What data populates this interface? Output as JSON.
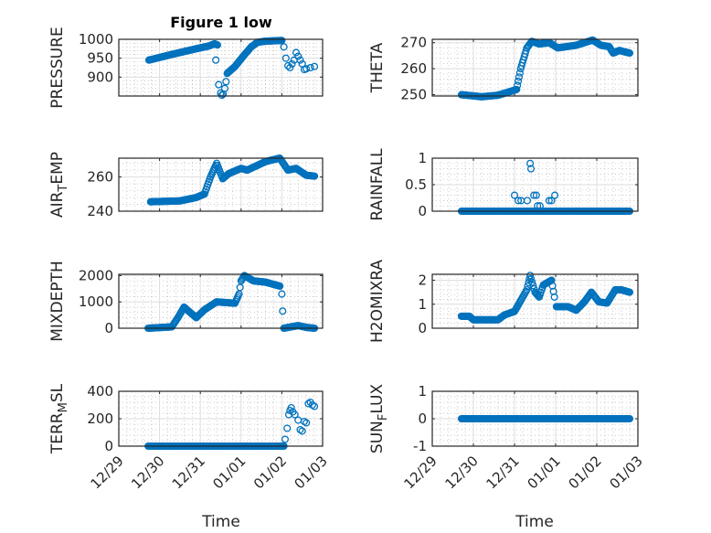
{
  "title": "Figure 1 low",
  "xlabel": "Time",
  "colors": {
    "marker": "#0072BD",
    "axis": "#262626",
    "grid_major": "#dedede",
    "grid_minor": "#b8b8b8"
  },
  "chart_data": [
    {
      "type": "scatter",
      "name": "pressure",
      "ylabel_parts": [
        "PRESSURE"
      ],
      "ylim": [
        850,
        1000
      ],
      "yticks": [
        900,
        950,
        1000
      ],
      "ytick_labels": [
        "900",
        "950",
        "1000"
      ],
      "line": [
        [
          0.74,
          945
        ],
        [
          1.3,
          960
        ],
        [
          1.9,
          975
        ],
        [
          2.2,
          982
        ],
        [
          2.35,
          988
        ],
        [
          2.42,
          985
        ]
      ],
      "points": [
        [
          2.38,
          945
        ],
        [
          2.45,
          880
        ],
        [
          2.5,
          858
        ],
        [
          2.53,
          852
        ],
        [
          2.56,
          855
        ],
        [
          2.6,
          870
        ],
        [
          2.63,
          888
        ]
      ],
      "line2": [
        [
          2.66,
          910
        ],
        [
          2.85,
          928
        ],
        [
          3.05,
          955
        ],
        [
          3.25,
          980
        ],
        [
          3.4,
          992
        ],
        [
          3.6,
          995
        ],
        [
          4.0,
          997
        ]
      ],
      "points2": [
        [
          4.05,
          980
        ],
        [
          4.1,
          950
        ],
        [
          4.15,
          930
        ],
        [
          4.2,
          925
        ],
        [
          4.25,
          935
        ],
        [
          4.3,
          945
        ],
        [
          4.35,
          965
        ],
        [
          4.4,
          955
        ],
        [
          4.45,
          945
        ],
        [
          4.5,
          935
        ],
        [
          4.55,
          920
        ],
        [
          4.6,
          922
        ],
        [
          4.7,
          925
        ],
        [
          4.8,
          928
        ]
      ]
    },
    {
      "type": "scatter",
      "name": "theta",
      "ylabel_parts": [
        "THETA"
      ],
      "ylim": [
        249.5,
        271.3
      ],
      "yticks": [
        250,
        260,
        270
      ],
      "ytick_labels": [
        "250",
        "260",
        "270"
      ],
      "line": [
        [
          0.71,
          250
        ],
        [
          1.2,
          249.2
        ],
        [
          1.6,
          249.8
        ],
        [
          1.95,
          251.5
        ],
        [
          2.05,
          252
        ],
        [
          2.15,
          260
        ],
        [
          2.3,
          268
        ],
        [
          2.42,
          270.5
        ],
        [
          2.6,
          269.5
        ],
        [
          2.85,
          270
        ],
        [
          3.05,
          268
        ],
        [
          3.5,
          269
        ],
        [
          3.9,
          271
        ],
        [
          4.1,
          269
        ],
        [
          4.3,
          268.5
        ],
        [
          4.4,
          266
        ],
        [
          4.55,
          267
        ],
        [
          4.8,
          266
        ]
      ],
      "points": [],
      "line2": [],
      "points2": []
    },
    {
      "type": "scatter",
      "name": "air-temp",
      "ylabel_parts": [
        "AIR",
        "T",
        "EMP"
      ],
      "ylim": [
        240,
        271
      ],
      "yticks": [
        240,
        260
      ],
      "ytick_labels": [
        "240",
        "260"
      ],
      "line": [
        [
          0.78,
          245.5
        ],
        [
          1.5,
          246
        ],
        [
          1.9,
          248
        ],
        [
          2.1,
          250
        ],
        [
          2.25,
          260
        ],
        [
          2.4,
          268
        ],
        [
          2.55,
          259
        ],
        [
          2.7,
          262
        ],
        [
          3.0,
          265
        ],
        [
          3.15,
          264
        ],
        [
          3.6,
          269
        ],
        [
          3.95,
          271
        ],
        [
          4.15,
          264
        ],
        [
          4.35,
          265
        ],
        [
          4.6,
          261
        ],
        [
          4.8,
          260.5
        ]
      ],
      "points": [],
      "line2": [],
      "points2": []
    },
    {
      "type": "scatter",
      "name": "rainfall",
      "ylabel_parts": [
        "RAINFALL"
      ],
      "ylim": [
        0,
        1
      ],
      "yticks": [
        0,
        0.5,
        1
      ],
      "ytick_labels": [
        "0",
        "0.5",
        "1"
      ],
      "line": [
        [
          0.71,
          0
        ],
        [
          4.8,
          0
        ]
      ],
      "points": [
        [
          2.0,
          0.3
        ],
        [
          2.09,
          0.2
        ],
        [
          2.16,
          0.2
        ],
        [
          2.31,
          0.2
        ],
        [
          2.38,
          0.9
        ],
        [
          2.4,
          0.8
        ],
        [
          2.47,
          0.3
        ],
        [
          2.53,
          0.3
        ],
        [
          2.56,
          0.1
        ],
        [
          2.62,
          0.1
        ],
        [
          2.84,
          0.2
        ],
        [
          2.9,
          0.2
        ],
        [
          2.98,
          0.3
        ]
      ],
      "line2": [],
      "points2": []
    },
    {
      "type": "scatter",
      "name": "mixdepth",
      "ylabel_parts": [
        "MIXDEPTH"
      ],
      "ylim": [
        0,
        2050
      ],
      "yticks": [
        0,
        1000,
        2000
      ],
      "ytick_labels": [
        "0",
        "1000",
        "2000"
      ],
      "line": [
        [
          0.72,
          0
        ],
        [
          1.3,
          50
        ],
        [
          1.45,
          400
        ],
        [
          1.6,
          800
        ],
        [
          1.75,
          600
        ],
        [
          1.9,
          400
        ],
        [
          2.1,
          700
        ],
        [
          2.4,
          1000
        ],
        [
          2.85,
          950
        ],
        [
          2.95,
          1300
        ],
        [
          3.0,
          1800
        ],
        [
          3.08,
          2000
        ],
        [
          3.3,
          1800
        ],
        [
          3.6,
          1750
        ],
        [
          3.95,
          1600
        ]
      ],
      "points": [
        [
          4.0,
          1300
        ],
        [
          4.02,
          650
        ]
      ],
      "line2": [
        [
          4.05,
          0
        ],
        [
          4.4,
          100
        ],
        [
          4.6,
          30
        ],
        [
          4.8,
          0
        ]
      ],
      "points2": []
    },
    {
      "type": "scatter",
      "name": "h2omixra",
      "ylabel_parts": [
        "H2OMIXRA"
      ],
      "ylim": [
        0,
        2.25
      ],
      "yticks": [
        0,
        1,
        2
      ],
      "ytick_labels": [
        "0",
        "1",
        "2"
      ],
      "line": [
        [
          0.71,
          0.5
        ],
        [
          0.9,
          0.5
        ],
        [
          1.0,
          0.35
        ],
        [
          1.6,
          0.35
        ],
        [
          1.75,
          0.55
        ],
        [
          2.0,
          0.7
        ],
        [
          2.1,
          1.0
        ],
        [
          2.3,
          1.6
        ],
        [
          2.38,
          2.2
        ],
        [
          2.5,
          1.5
        ],
        [
          2.6,
          1.3
        ],
        [
          2.7,
          1.8
        ],
        [
          2.9,
          2.0
        ],
        [
          2.97,
          1.3
        ]
      ],
      "points": [],
      "line2": [
        [
          3.02,
          0.9
        ],
        [
          3.3,
          0.9
        ],
        [
          3.5,
          0.75
        ],
        [
          3.7,
          1.1
        ],
        [
          3.87,
          1.5
        ],
        [
          4.05,
          1.1
        ],
        [
          4.25,
          1.05
        ],
        [
          4.45,
          1.6
        ],
        [
          4.6,
          1.6
        ],
        [
          4.8,
          1.5
        ]
      ],
      "points2": []
    },
    {
      "type": "scatter",
      "name": "terr-msl",
      "ylabel_parts": [
        "TERR",
        "M",
        "SL"
      ],
      "ylim": [
        0,
        400
      ],
      "yticks": [
        0,
        200,
        400
      ],
      "ytick_labels": [
        "0",
        "200",
        "400"
      ],
      "line": [
        [
          0.72,
          0
        ],
        [
          4.05,
          0
        ]
      ],
      "points": [
        [
          4.08,
          50
        ],
        [
          4.13,
          130
        ],
        [
          4.17,
          230
        ],
        [
          4.2,
          260
        ],
        [
          4.23,
          280
        ],
        [
          4.27,
          250
        ],
        [
          4.32,
          230
        ],
        [
          4.4,
          190
        ],
        [
          4.45,
          120
        ],
        [
          4.5,
          110
        ],
        [
          4.55,
          180
        ],
        [
          4.6,
          170
        ],
        [
          4.65,
          310
        ],
        [
          4.7,
          320
        ],
        [
          4.75,
          300
        ],
        [
          4.8,
          290
        ]
      ],
      "line2": [],
      "points2": []
    },
    {
      "type": "scatter",
      "name": "sun-flux",
      "ylabel_parts": [
        "SUN",
        "F",
        "LUX"
      ],
      "ylim": [
        -1,
        1
      ],
      "yticks": [
        -1,
        0,
        1
      ],
      "ytick_labels": [
        "-1",
        "0",
        "1"
      ],
      "line": [
        [
          0.71,
          0
        ],
        [
          4.8,
          0
        ]
      ],
      "points": [],
      "line2": [],
      "points2": []
    }
  ],
  "x_axis": {
    "xlim": [
      0,
      5
    ],
    "xtick_labels": [
      "12/29",
      "12/30",
      "12/31",
      "01/01",
      "01/02",
      "01/03"
    ]
  }
}
